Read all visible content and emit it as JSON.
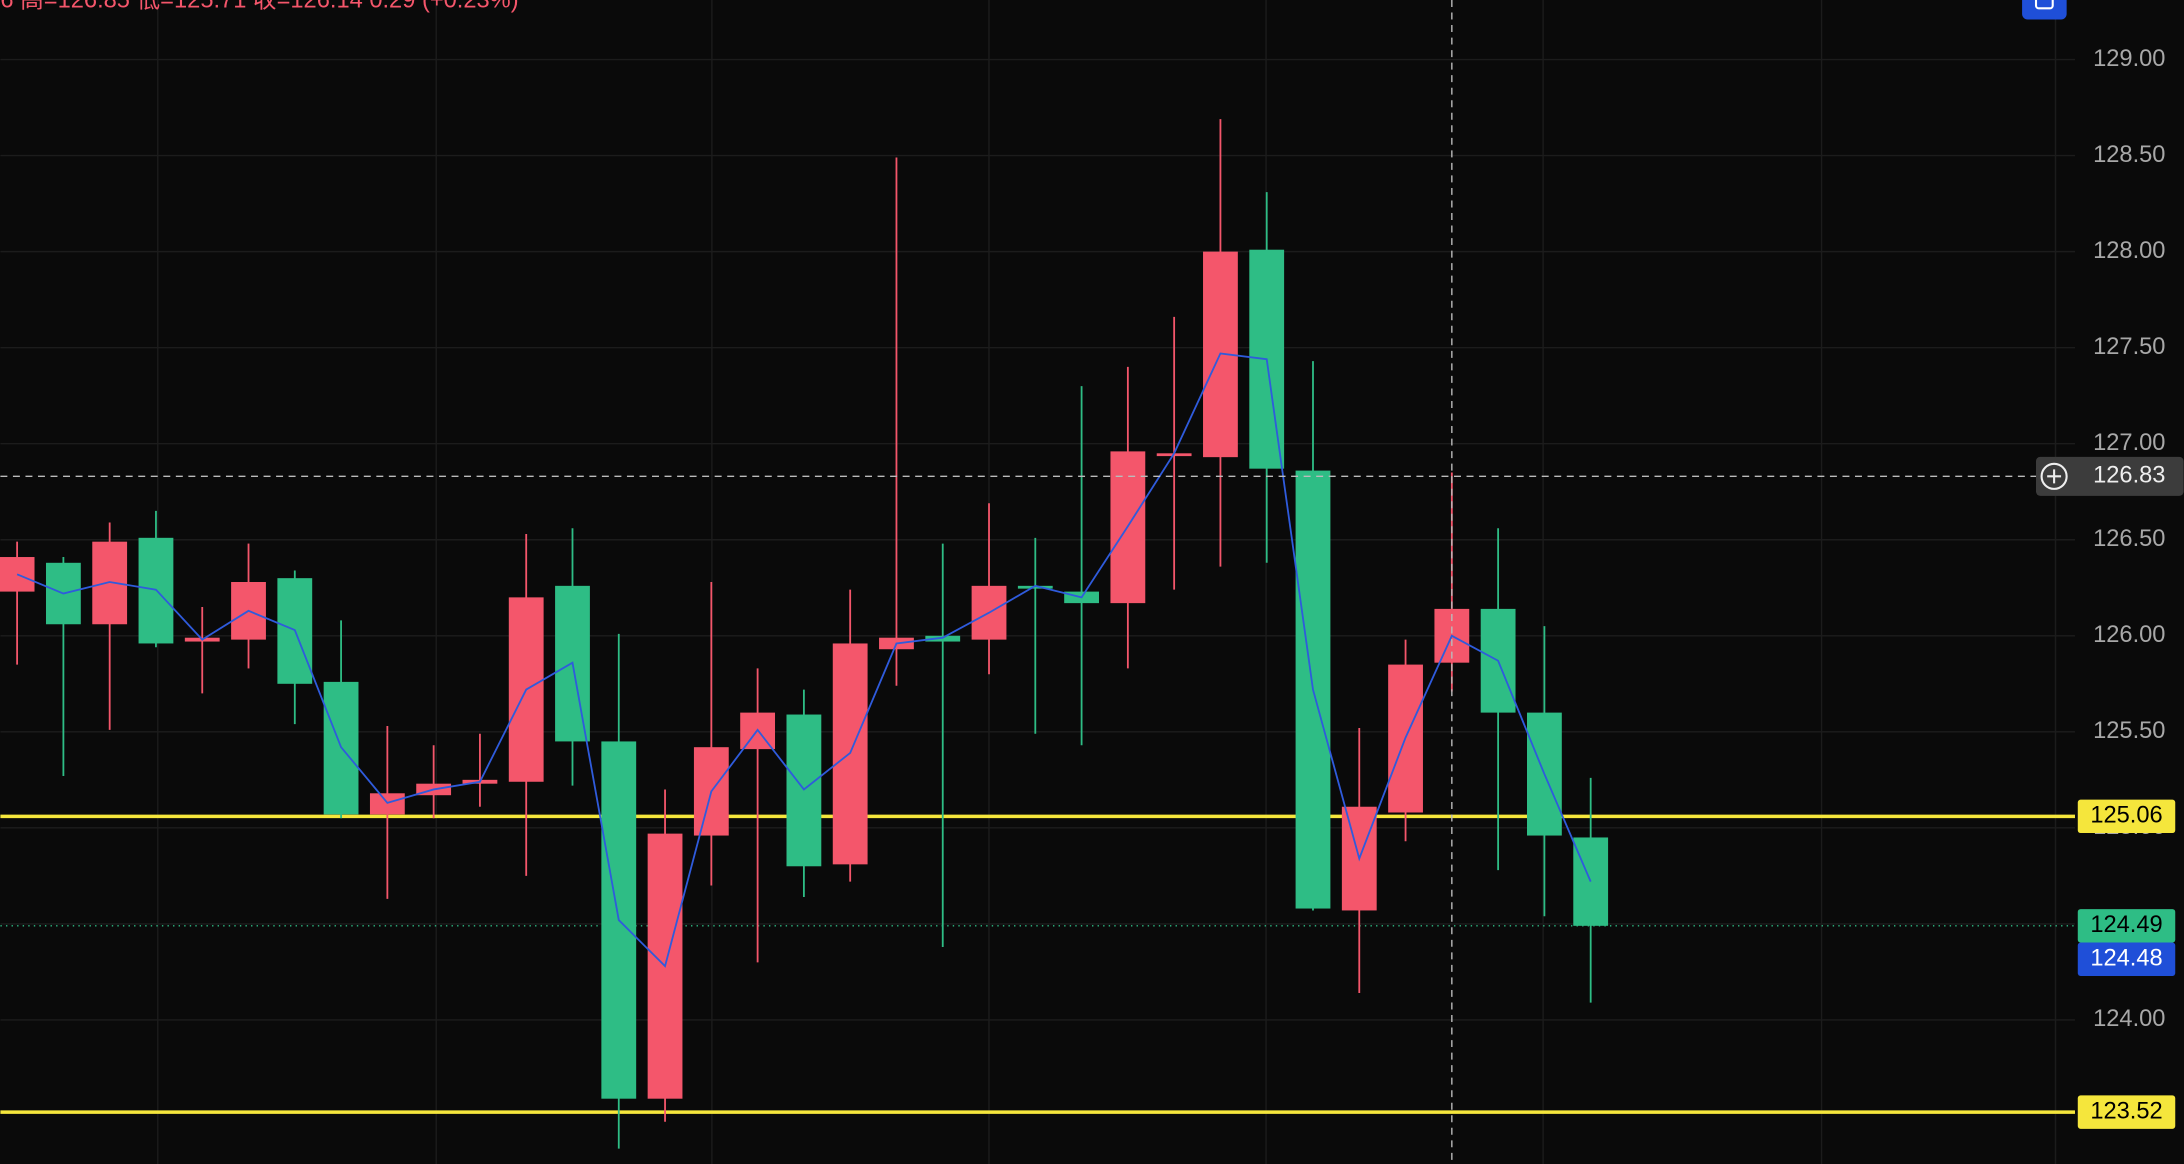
{
  "chart_data": {
    "type": "candlestick",
    "header": "6  高=126.85  低=125.71  收=126.14  0.29 (+0.23%)",
    "categories": [
      null,
      null,
      null,
      null,
      null,
      null,
      null,
      null,
      null,
      null,
      null,
      null,
      null,
      null,
      null,
      null,
      null,
      null,
      null,
      null,
      null,
      null,
      null,
      null,
      null,
      null,
      null,
      null,
      null,
      null,
      null,
      null,
      null,
      null,
      null
    ],
    "open": [
      126.23,
      126.38,
      126.06,
      126.51,
      125.97,
      125.98,
      126.3,
      125.76,
      125.07,
      125.17,
      125.23,
      125.24,
      126.26,
      125.45,
      123.59,
      124.96,
      125.41,
      125.59,
      124.81,
      125.93,
      126.0,
      125.98,
      126.26,
      126.23,
      126.17,
      126.94,
      126.93,
      128.01,
      126.86,
      124.57,
      125.08,
      125.86,
      126.14,
      125.6,
      124.95
    ],
    "high": [
      126.49,
      126.41,
      126.59,
      126.65,
      126.15,
      126.48,
      126.34,
      126.08,
      125.53,
      125.43,
      125.49,
      126.53,
      126.56,
      126.01,
      125.2,
      126.28,
      125.83,
      125.72,
      126.24,
      128.49,
      126.48,
      126.69,
      126.51,
      127.3,
      127.4,
      127.66,
      128.69,
      128.31,
      127.43,
      125.52,
      125.98,
      126.85,
      126.56,
      126.05,
      125.26
    ],
    "low": [
      125.85,
      125.27,
      125.51,
      125.94,
      125.7,
      125.83,
      125.54,
      125.05,
      124.63,
      125.05,
      125.11,
      124.75,
      125.22,
      123.33,
      123.47,
      124.7,
      124.3,
      124.64,
      124.72,
      125.74,
      124.38,
      125.8,
      125.49,
      125.43,
      125.83,
      126.24,
      126.36,
      126.38,
      124.57,
      124.14,
      124.93,
      125.71,
      124.78,
      124.54,
      124.09
    ],
    "close": [
      126.41,
      126.06,
      126.49,
      125.96,
      125.99,
      126.28,
      125.75,
      125.07,
      125.18,
      125.23,
      125.25,
      126.2,
      125.45,
      123.59,
      124.97,
      125.42,
      125.6,
      124.8,
      125.96,
      125.99,
      125.97,
      126.26,
      126.25,
      126.17,
      126.96,
      126.95,
      128.0,
      126.87,
      124.58,
      125.11,
      125.85,
      126.14,
      125.6,
      124.96,
      124.49
    ],
    "line": {
      "color": "#2f5bdc",
      "values": [
        126.32,
        126.22,
        126.28,
        126.24,
        125.98,
        126.13,
        126.03,
        125.42,
        125.13,
        125.2,
        125.24,
        125.72,
        125.86,
        124.52,
        124.28,
        125.19,
        125.51,
        125.2,
        125.39,
        125.96,
        125.99,
        126.12,
        126.26,
        126.2,
        126.57,
        126.95,
        127.47,
        127.44,
        125.72,
        124.84,
        125.47,
        126.0,
        125.87,
        125.28,
        124.72
      ]
    },
    "up_color": "#f4566b",
    "down_color": "#2ebd85",
    "ylim": [
      123.25,
      129.31
    ],
    "yticks": [
      {
        "value": 124,
        "label": "124.00"
      },
      {
        "value": 124.5,
        "label": "124.50"
      },
      {
        "value": 125,
        "label": "125.00"
      },
      {
        "value": 125.5,
        "label": "125.50"
      },
      {
        "value": 126,
        "label": "126.00"
      },
      {
        "value": 126.5,
        "label": "126.50"
      },
      {
        "value": 127,
        "label": "127.00"
      },
      {
        "value": 127.5,
        "label": "127.50"
      },
      {
        "value": 128,
        "label": "128.00"
      },
      {
        "value": 128.5,
        "label": "128.50"
      },
      {
        "value": 129,
        "label": "129.00"
      }
    ],
    "grid": true,
    "levels": [
      {
        "value": 125.06,
        "color": "#f5e63c",
        "text_color": "#000000",
        "line": "solid"
      },
      {
        "value": 124.49,
        "color": "#2ebd85",
        "text_color": "#000000",
        "line": "dotted"
      },
      {
        "value": 124.48,
        "color": "#1f4fd8",
        "text_color": "#ffffff"
      },
      {
        "value": 123.52,
        "color": "#f5e63c",
        "text_color": "#000000",
        "line": "solid"
      }
    ],
    "crosshair": {
      "value": 126.83,
      "index": 31
    }
  }
}
